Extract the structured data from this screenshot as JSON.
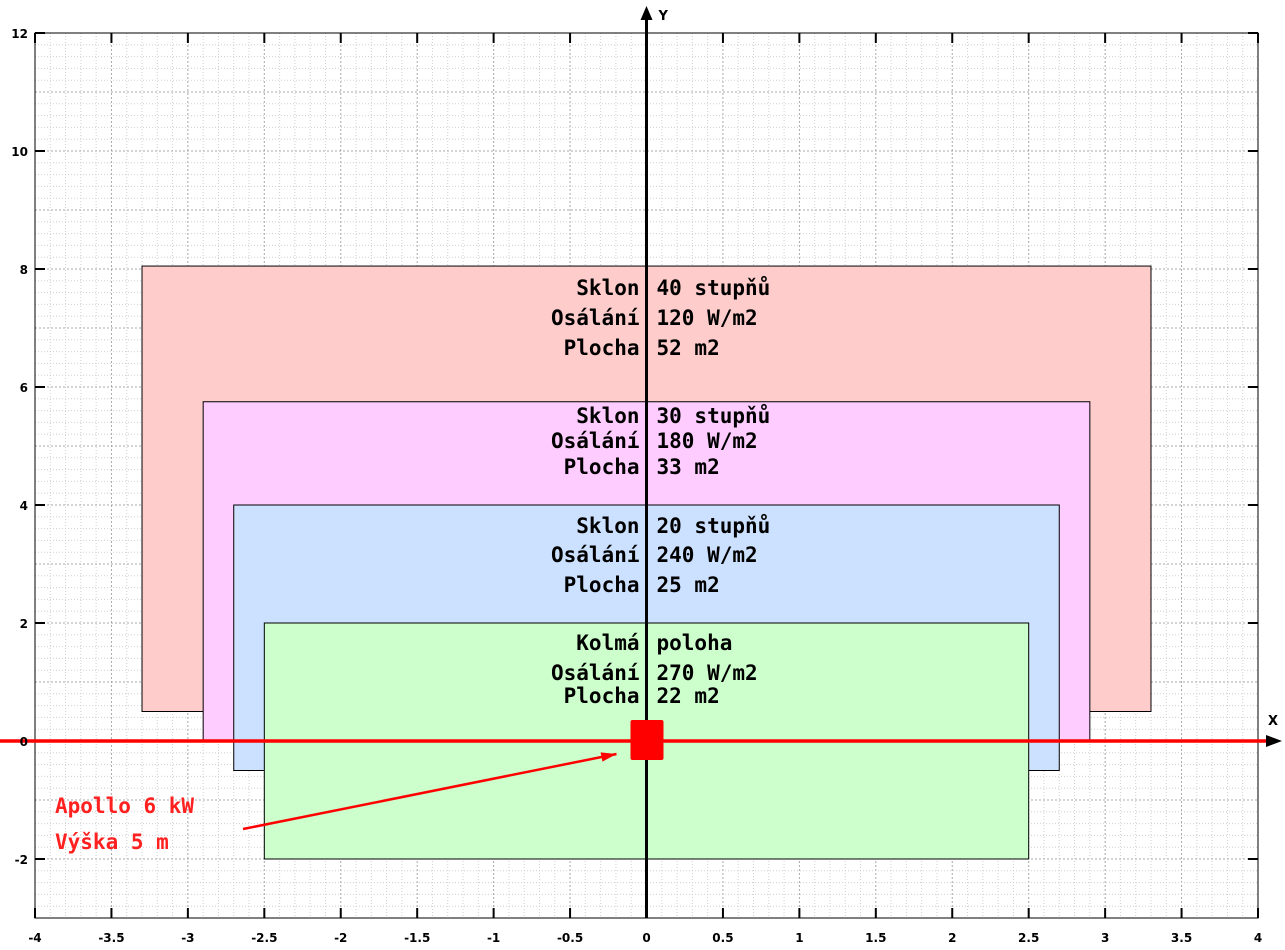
{
  "chart_data": {
    "type": "diagram-plot",
    "xlim": [
      -4,
      4
    ],
    "ylim": [
      -3,
      12
    ],
    "x_axis_name": "X",
    "y_axis_name": "Y",
    "x_ticks": [
      -4,
      -3.5,
      -3,
      -2.5,
      -2,
      -1.5,
      -1,
      -0.5,
      0,
      0.5,
      1,
      1.5,
      2,
      2.5,
      3,
      3.5,
      4
    ],
    "x_tick_labels": [
      "-4",
      "-3.5",
      "-3",
      "-2.5",
      "-2",
      "-1.5",
      "-1",
      "-0.5",
      "0",
      "0.5",
      "1",
      "1.5",
      "2",
      "2.5",
      "3",
      "3.5",
      "4"
    ],
    "y_ticks": [
      -2,
      0,
      2,
      4,
      6,
      8,
      10,
      12
    ],
    "y_tick_labels": [
      "-2",
      "0",
      "2",
      "4",
      "6",
      "8",
      "10",
      "12"
    ],
    "grid": true,
    "regions": [
      {
        "id": "sklon-40",
        "x0": -3.3,
        "x1": 3.3,
        "y0": 0.5,
        "y1": 8.05,
        "color": "#ffcccc",
        "labels": [
          "Sklon 40 stupňů",
          "Osálání 120 W/m2",
          "Plocha 52 m2"
        ]
      },
      {
        "id": "sklon-30",
        "x0": -2.9,
        "x1": 2.9,
        "y0": 0.0,
        "y1": 5.75,
        "color": "#ffccff",
        "labels": [
          "Sklon 30 stupňů",
          "Osálání 180 W/m2",
          "Plocha 33 m2"
        ]
      },
      {
        "id": "sklon-20",
        "x0": -2.7,
        "x1": 2.7,
        "y0": -0.5,
        "y1": 4.0,
        "color": "#cce0ff",
        "labels": [
          "Sklon 20 stupňů",
          "Osálání 240 W/m2",
          "Plocha 25 m2"
        ]
      },
      {
        "id": "kolma",
        "x0": -2.5,
        "x1": 2.5,
        "y0": -2.0,
        "y1": 2.0,
        "color": "#ccffcc",
        "labels": [
          "Kolmá poloha",
          "Osálání 270 W/m2",
          "Plocha 22 m2"
        ]
      }
    ],
    "heater": {
      "x": 0,
      "y": 0,
      "color": "#ff0000",
      "labels": [
        "Apollo 6 kW",
        "Výška 5 m"
      ]
    }
  }
}
